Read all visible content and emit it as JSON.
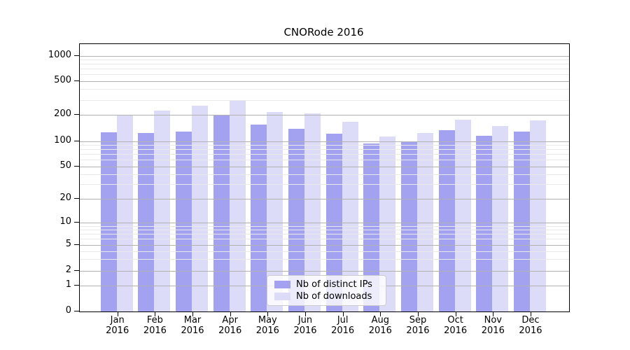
{
  "title": "CNORode 2016",
  "legend": {
    "items": [
      {
        "label": "Nb of distinct IPs",
        "color": "#a2a2f0"
      },
      {
        "label": "Nb of downloads",
        "color": "#dcdcf8"
      }
    ]
  },
  "y_axis": {
    "tick_labels": [
      "1000",
      "500",
      "200",
      "100",
      "50",
      "20",
      "10",
      "5",
      "2",
      "1",
      "0"
    ]
  },
  "x_axis": {
    "months": [
      "Jan",
      "Feb",
      "Mar",
      "Apr",
      "May",
      "Jun",
      "Jul",
      "Aug",
      "Sep",
      "Oct",
      "Nov",
      "Dec"
    ],
    "year": "2016"
  },
  "chart_data": {
    "type": "bar",
    "title": "CNORode 2016",
    "categories": [
      "Jan 2016",
      "Feb 2016",
      "Mar 2016",
      "Apr 2016",
      "May 2016",
      "Jun 2016",
      "Jul 2016",
      "Aug 2016",
      "Sep 2016",
      "Oct 2016",
      "Nov 2016",
      "Dec 2016"
    ],
    "series": [
      {
        "name": "Nb of distinct IPs",
        "color": "#a2a2f0",
        "values": [
          126,
          124,
          130,
          199,
          156,
          138,
          122,
          95,
          99,
          134,
          116,
          130
        ]
      },
      {
        "name": "Nb of downloads",
        "color": "#dcdcf8",
        "values": [
          201,
          223,
          257,
          296,
          215,
          206,
          168,
          113,
          124,
          176,
          149,
          174
        ]
      }
    ],
    "yscale": "symlog",
    "y_ticks": [
      0,
      1,
      2,
      5,
      10,
      20,
      50,
      100,
      200,
      500,
      1000
    ],
    "ylim_top_label": "1000",
    "grid": "horizontal, major and minor log lines",
    "legend_position": "lower center"
  }
}
